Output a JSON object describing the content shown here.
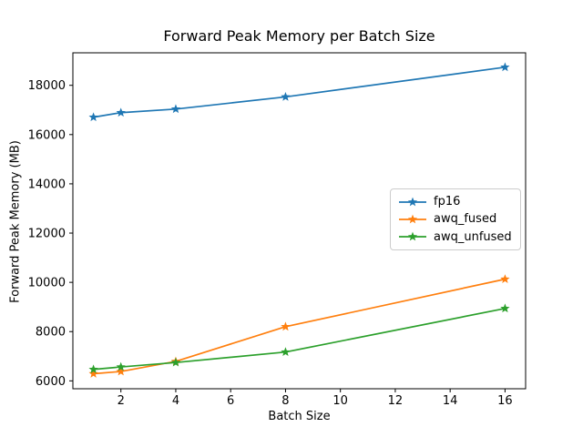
{
  "figure": {
    "background": "#ffffff",
    "spine_color": "#000000",
    "tick_color": "#000000"
  },
  "chart_data": {
    "type": "line",
    "title": "Forward Peak Memory per Batch Size",
    "xlabel": "Batch Size",
    "ylabel": "Forward Peak Memory (MB)",
    "x": [
      1,
      2,
      4,
      8,
      16
    ],
    "series": [
      {
        "name": "fp16",
        "color": "#1f77b4",
        "marker": "star",
        "values": [
          16705,
          16890,
          17035,
          17530,
          18735
        ]
      },
      {
        "name": "awq_fused",
        "color": "#ff7f0e",
        "marker": "star",
        "values": [
          6290,
          6380,
          6790,
          8200,
          10130
        ]
      },
      {
        "name": "awq_unfused",
        "color": "#2ca02c",
        "marker": "star",
        "values": [
          6465,
          6565,
          6745,
          7170,
          8940
        ]
      }
    ],
    "xticks": [
      2,
      4,
      6,
      8,
      10,
      12,
      14,
      16
    ],
    "yticks": [
      6000,
      8000,
      10000,
      12000,
      14000,
      16000,
      18000
    ],
    "xlim": [
      0.25,
      16.75
    ],
    "ylim": [
      5680,
      19320
    ],
    "grid": false,
    "legend_position": "center right"
  }
}
